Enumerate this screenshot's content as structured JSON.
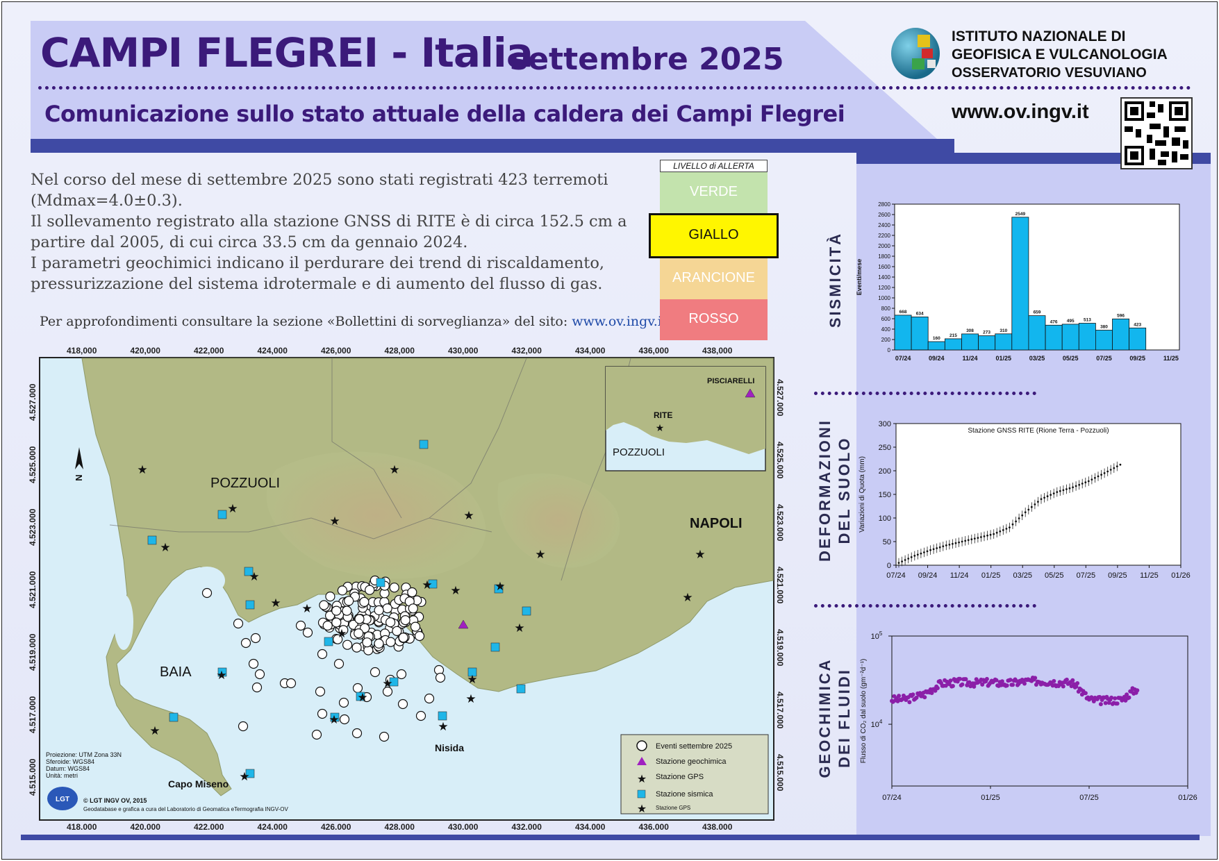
{
  "header": {
    "title": "CAMPI FLEGREI  -  Italia",
    "month": "settembre 2025",
    "subtitle": "Comunicazione sullo stato attuale della caldera dei Campi Flegrei",
    "institute_line1": "ISTITUTO NAZIONALE DI",
    "institute_line2": "GEOFISICA E VULCANOLOGIA",
    "institute_line3": "OSSERVATORIO VESUVIANO",
    "website": "www.ov.ingv.it"
  },
  "intro": {
    "p1": "Nel corso del mese di settembre 2025 sono stati registrati 423 terremoti (Mdmax=4.0±0.3).",
    "p2": "Il sollevamento registrato alla stazione GNSS di RITE è di circa 152.5 cm a partire dal 2005, di cui circa 33.5 cm da gennaio 2024.",
    "p3": "I parametri geochimici indicano il perdurare dei trend di riscaldamento, pressurizzazione  del sistema idrotermale e di aumento del flusso di gas.",
    "more_text": "Per approfondimenti consultare la sezione «Bollettini di sorveglianza» del sito:",
    "more_link": "www.ov.ingv.it"
  },
  "alert": {
    "label": "LIVELLO di ALLERTA",
    "levels": [
      "VERDE",
      "GIALLO",
      "ARANCIONE",
      "ROSSO"
    ],
    "current": "GIALLO",
    "colors": {
      "verde": "#c3e3ad",
      "giallo": "#fff600",
      "arancione": "#f5d695",
      "rosso": "#f07c80"
    }
  },
  "map": {
    "x_ticks": [
      "418,000",
      "420,000",
      "422,000",
      "424,000",
      "426,000",
      "428,000",
      "430,000",
      "432,000",
      "434,000",
      "436,000",
      "438,000"
    ],
    "x_ticks_bottom": [
      "418.000",
      "420.000",
      "422.000",
      "424.000",
      "426.000",
      "428.000",
      "430.000",
      "432.000",
      "434.000",
      "436.000",
      "438.000"
    ],
    "y_ticks": [
      "4.527.000",
      "4.525.000",
      "4.523.000",
      "4.521.000",
      "4.519.000",
      "4.517.000",
      "4.515.000"
    ],
    "places": {
      "pozzuoli": "POZZUOLI",
      "napoli": "NAPOLI",
      "baia": "BAIA",
      "nisida": "Nisida",
      "capo_miseno": "Capo Miseno"
    },
    "inset": {
      "pisciarelli": "PISCIARELLI",
      "rite": "RITE",
      "pozzuoli": "POZZUOLI"
    },
    "north": "N",
    "projection": [
      "Proiezione: UTM Zona 33N",
      "Sferoide: WGS84",
      "Datum: WGS84",
      "Unità: metri"
    ],
    "credit1": "© LGT INGV OV, 2015",
    "credit2": "Geodatabase e grafica a cura del Laboratorio di Geomatica eTermografia INGV-OV",
    "legend": [
      "Eventi settembre 2025",
      "Stazione geochimica",
      "Stazione GPS",
      "Stazione sismica",
      "Stazione GPS"
    ],
    "colors": {
      "sea": "#d8eef8",
      "land": "#b7bf8a",
      "station": "#1fb6e8",
      "geochem": "#a020c0"
    }
  },
  "sections": {
    "sismicita": "SISMICITÀ",
    "deformazioni_1": "DEFORMAZIONI",
    "deformazioni_2": "DEL SUOLO",
    "geochimica_1": "GEOCHIMICA",
    "geochimica_2": "DEI FLUIDI"
  },
  "chart_data": [
    {
      "type": "bar",
      "ylabel": "Eventi/mese",
      "ylim": [
        0,
        2800
      ],
      "yticks": [
        0,
        200,
        400,
        600,
        800,
        1000,
        1200,
        1400,
        1600,
        1800,
        2000,
        2200,
        2400,
        2600,
        2800
      ],
      "categories": [
        "07/24",
        "08/24",
        "09/24",
        "10/24",
        "11/24",
        "12/24",
        "01/25",
        "02/25",
        "03/25",
        "04/25",
        "05/25",
        "06/25",
        "07/25",
        "08/25",
        "09/25"
      ],
      "values": [
        668,
        634,
        160,
        215,
        308,
        273,
        310,
        2549,
        659,
        476,
        495,
        513,
        380,
        596,
        423
      ],
      "xtick_labels": [
        "07/24",
        "09/24",
        "11/24",
        "01/25",
        "03/25",
        "05/25",
        "07/25",
        "09/25",
        "11/25"
      ],
      "color": "#12b6ee"
    },
    {
      "type": "line",
      "title": "Stazione GNSS RITE (Rione Terra - Pozzuoli)",
      "ylabel": "Variazioni di Quota (mm)",
      "ylim": [
        0,
        300
      ],
      "yticks": [
        0,
        50,
        100,
        150,
        200,
        250,
        300
      ],
      "xtick_labels": [
        "07/24",
        "09/24",
        "11/24",
        "01/25",
        "03/25",
        "05/25",
        "07/25",
        "09/25",
        "11/25",
        "01/26"
      ],
      "x": [
        "07/24",
        "08/24",
        "09/24",
        "10/24",
        "11/24",
        "12/24",
        "01/25",
        "02/25",
        "03/25",
        "04/25",
        "05/25",
        "06/25",
        "07/25",
        "08/25",
        "09/25"
      ],
      "values": [
        5,
        20,
        32,
        42,
        50,
        58,
        66,
        80,
        112,
        140,
        155,
        165,
        178,
        195,
        213
      ],
      "error_bar": 10
    },
    {
      "type": "scatter",
      "ylabel": "Flusso di CO2 dal suolo (gm-2d-1)",
      "yscale": "log",
      "ytick_labels": [
        "10^4",
        "10^5"
      ],
      "xtick_labels": [
        "07/24",
        "01/25",
        "07/25",
        "01/26"
      ],
      "x": [
        "07/24",
        "08/24",
        "09/24",
        "10/24",
        "11/24",
        "12/24",
        "01/25",
        "02/25",
        "03/25",
        "04/25",
        "05/25",
        "06/25",
        "07/25",
        "08/25",
        "09/25",
        "10/25"
      ],
      "values": [
        19000,
        19500,
        22000,
        29000,
        30000,
        29500,
        30000,
        29000,
        30500,
        31000,
        30000,
        29500,
        19000,
        18500,
        19000,
        26000
      ],
      "color": "#8b1fa8"
    }
  ]
}
